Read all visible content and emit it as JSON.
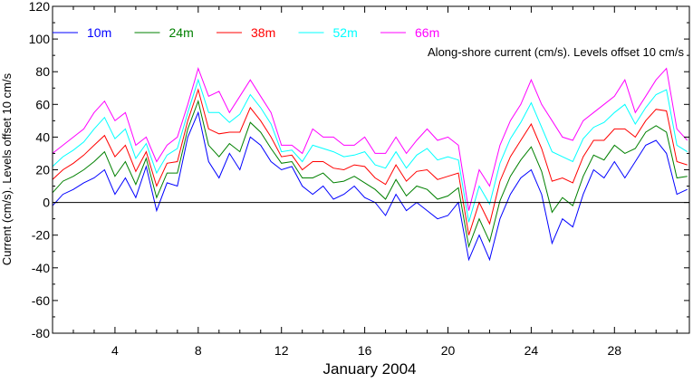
{
  "chart_data": {
    "type": "line",
    "title": "",
    "annotation": "Along-shore current (cm/s). Levels offset 10 cm/s",
    "xlabel": "January 2004",
    "ylabel": "Current (cm/s). Levels offset 10 cm/s",
    "xlim": [
      1,
      31.6
    ],
    "ylim": [
      -80,
      120
    ],
    "x_ticks": [
      4,
      8,
      12,
      16,
      20,
      24,
      28
    ],
    "y_ticks": [
      -80,
      -60,
      -40,
      -20,
      0,
      20,
      40,
      60,
      80,
      100,
      120
    ],
    "grid": false,
    "zero_line": true,
    "legend_placement": "top-left",
    "x": [
      1,
      1.5,
      2,
      2.5,
      3,
      3.5,
      4,
      4.5,
      5,
      5.5,
      6,
      6.5,
      7,
      7.5,
      8,
      8.5,
      9,
      9.5,
      10,
      10.5,
      11,
      11.5,
      12,
      12.5,
      13,
      13.5,
      14,
      14.5,
      15,
      15.5,
      16,
      16.5,
      17,
      17.5,
      18,
      18.5,
      19,
      19.5,
      20,
      20.5,
      21,
      21.5,
      22,
      22.5,
      23,
      23.5,
      24,
      24.5,
      25,
      25.5,
      26,
      26.5,
      27,
      27.5,
      28,
      28.5,
      29,
      29.5,
      30,
      30.5,
      31,
      31.5
    ],
    "series": [
      {
        "name": "10m",
        "color": "#0000ff",
        "values": [
          -2,
          5,
          8,
          12,
          15,
          20,
          5,
          15,
          3,
          22,
          -5,
          12,
          10,
          40,
          55,
          25,
          15,
          30,
          20,
          40,
          35,
          25,
          20,
          22,
          10,
          5,
          10,
          2,
          5,
          10,
          3,
          0,
          -8,
          5,
          -5,
          0,
          -5,
          -10,
          -8,
          0,
          -35,
          -20,
          -35,
          -10,
          5,
          15,
          20,
          5,
          -25,
          -10,
          -15,
          5,
          20,
          15,
          25,
          15,
          25,
          35,
          38,
          30,
          5,
          8
        ]
      },
      {
        "name": "24m",
        "color": "#008000",
        "values": [
          6,
          13,
          16,
          20,
          25,
          31,
          16,
          25,
          11,
          27,
          3,
          18,
          18,
          45,
          62,
          35,
          28,
          36,
          31,
          49,
          43,
          33,
          24,
          25,
          15,
          15,
          18,
          12,
          13,
          16,
          12,
          8,
          2,
          14,
          4,
          10,
          8,
          2,
          4,
          9,
          -27,
          -10,
          -24,
          1,
          16,
          26,
          34,
          19,
          -6,
          3,
          -2,
          16,
          29,
          26,
          35,
          30,
          33,
          43,
          47,
          43,
          15,
          16
        ]
      },
      {
        "name": "38m",
        "color": "#ff0000",
        "values": [
          14,
          20,
          24,
          29,
          35,
          41,
          28,
          35,
          19,
          31,
          10,
          24,
          25,
          50,
          69,
          45,
          42,
          43,
          43,
          58,
          50,
          40,
          28,
          29,
          20,
          25,
          25,
          21,
          20,
          23,
          22,
          15,
          11,
          23,
          13,
          19,
          20,
          14,
          16,
          18,
          -20,
          0,
          -13,
          13,
          28,
          38,
          48,
          33,
          13,
          15,
          12,
          28,
          38,
          38,
          45,
          45,
          40,
          50,
          57,
          56,
          25,
          23
        ]
      },
      {
        "name": "52m",
        "color": "#00ffff",
        "values": [
          22,
          28,
          32,
          37,
          45,
          52,
          39,
          45,
          27,
          36,
          18,
          29,
          33,
          55,
          75,
          55,
          55,
          49,
          54,
          66,
          58,
          48,
          31,
          32,
          25,
          35,
          33,
          31,
          28,
          29,
          31,
          23,
          21,
          31,
          21,
          29,
          33,
          26,
          28,
          26,
          -12,
          10,
          -1,
          24,
          39,
          49,
          61,
          46,
          31,
          28,
          25,
          39,
          46,
          49,
          55,
          60,
          48,
          58,
          66,
          69,
          35,
          31
        ]
      },
      {
        "name": "66m",
        "color": "#ff00ff",
        "values": [
          30,
          35,
          40,
          45,
          55,
          62,
          50,
          55,
          35,
          40,
          25,
          35,
          40,
          60,
          82,
          65,
          68,
          55,
          65,
          75,
          65,
          55,
          35,
          35,
          30,
          45,
          40,
          40,
          35,
          35,
          40,
          30,
          30,
          40,
          30,
          38,
          45,
          38,
          40,
          35,
          -5,
          20,
          10,
          35,
          50,
          60,
          75,
          60,
          50,
          40,
          38,
          50,
          55,
          60,
          65,
          75,
          55,
          65,
          75,
          82,
          45,
          38
        ]
      }
    ]
  }
}
